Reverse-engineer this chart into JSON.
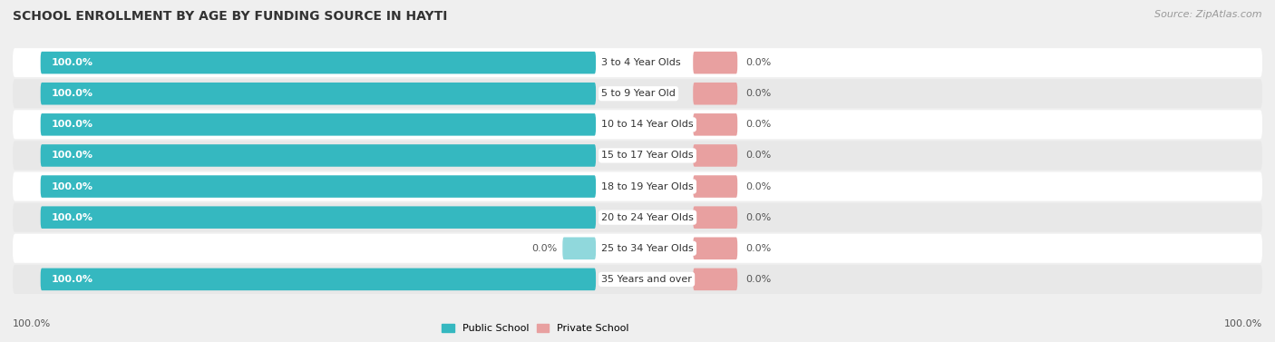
{
  "title": "SCHOOL ENROLLMENT BY AGE BY FUNDING SOURCE IN HAYTI",
  "source": "Source: ZipAtlas.com",
  "categories": [
    "3 to 4 Year Olds",
    "5 to 9 Year Old",
    "10 to 14 Year Olds",
    "15 to 17 Year Olds",
    "18 to 19 Year Olds",
    "20 to 24 Year Olds",
    "25 to 34 Year Olds",
    "35 Years and over"
  ],
  "public_values": [
    100.0,
    100.0,
    100.0,
    100.0,
    100.0,
    100.0,
    0.0,
    100.0
  ],
  "private_values": [
    0.0,
    0.0,
    0.0,
    0.0,
    0.0,
    0.0,
    0.0,
    0.0
  ],
  "public_color": "#35b8c0",
  "public_zero_color": "#90d8dc",
  "private_color": "#e8a0a0",
  "bg_color": "#efefef",
  "row_colors": [
    "#ffffff",
    "#e8e8e8"
  ],
  "title_fontsize": 10,
  "bar_label_fontsize": 8,
  "cat_label_fontsize": 8,
  "source_fontsize": 8,
  "legend_fontsize": 8,
  "axis_label_fontsize": 8,
  "public_bar_width": 100.0,
  "private_bar_width": 8.0,
  "label_x_left": "100.0%",
  "label_x_right": "100.0%"
}
